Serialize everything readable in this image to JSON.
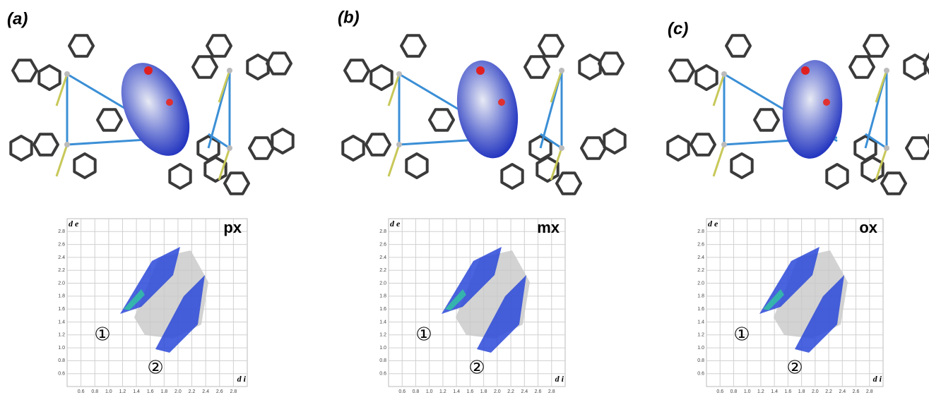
{
  "panels": [
    {
      "label": "(a)",
      "plot": {
        "tag": "px",
        "y_axis_label": "d e",
        "x_axis_label": "d i",
        "markers": [
          "①",
          "②"
        ],
        "xlim": [
          0.4,
          3.0
        ],
        "ylim": [
          0.4,
          3.0
        ],
        "xticks": [
          0.6,
          0.8,
          {
            "value": 1,
            "label": "1.0"
          },
          1.2,
          1.4,
          1.6,
          1.8,
          {
            "value": 2,
            "label": "2.0"
          },
          2.2,
          2.4,
          2.6,
          2.8
        ],
        "yticks": [
          0.6,
          0.8,
          {
            "value": 1,
            "label": "1.0"
          },
          1.2,
          1.4,
          1.6,
          1.8,
          {
            "value": 2,
            "label": "2.0"
          },
          2.2,
          2.4,
          2.6,
          2.8
        ]
      }
    },
    {
      "label": "(b)",
      "plot": {
        "tag": "mx",
        "y_axis_label": "d e",
        "x_axis_label": "d i",
        "markers": [
          "①",
          "②"
        ],
        "xlim": [
          0.4,
          3.0
        ],
        "ylim": [
          0.4,
          3.0
        ],
        "xticks": [
          0.6,
          0.8,
          {
            "value": 1,
            "label": "1.0"
          },
          1.2,
          1.4,
          1.6,
          1.8,
          {
            "value": 2,
            "label": "2.0"
          },
          2.2,
          2.4,
          2.6,
          2.8
        ],
        "yticks": [
          0.6,
          0.8,
          {
            "value": 1,
            "label": "1.0"
          },
          1.2,
          1.4,
          1.6,
          1.8,
          {
            "value": 2,
            "label": "2.0"
          },
          2.2,
          2.4,
          2.6,
          2.8
        ]
      }
    },
    {
      "label": "(c)",
      "plot": {
        "tag": "ox",
        "y_axis_label": "d e",
        "x_axis_label": "d i",
        "markers": [
          "①",
          "②"
        ],
        "xlim": [
          0.4,
          3.0
        ],
        "ylim": [
          0.4,
          3.0
        ],
        "xticks": [
          0.6,
          0.8,
          {
            "value": 1,
            "label": "1.0"
          },
          1.2,
          1.4,
          1.6,
          1.8,
          {
            "value": 2,
            "label": "2.0"
          },
          2.2,
          2.4,
          2.6,
          2.8
        ],
        "yticks": [
          0.6,
          0.8,
          {
            "value": 1,
            "label": "1.0"
          },
          1.2,
          1.4,
          1.6,
          1.8,
          {
            "value": 2,
            "label": "2.0"
          },
          2.2,
          2.4,
          2.6,
          2.8
        ]
      }
    }
  ]
}
